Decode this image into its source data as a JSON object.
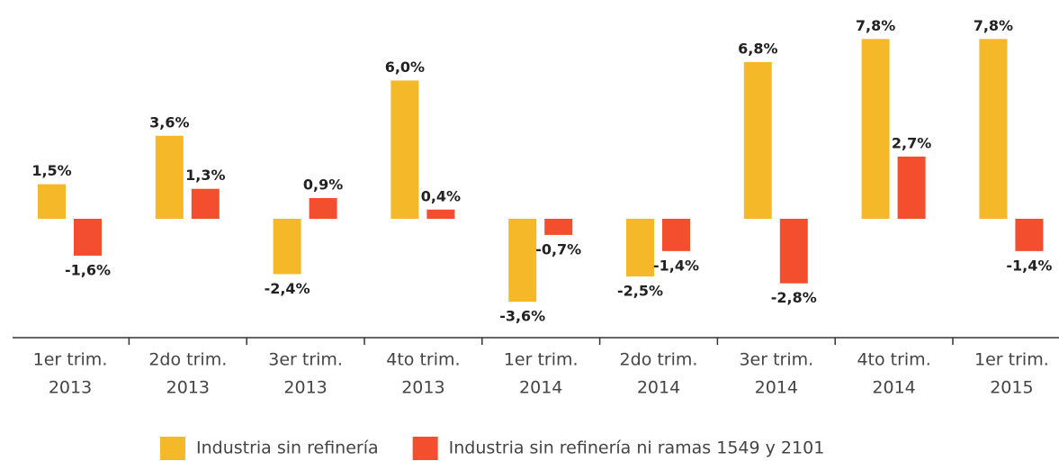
{
  "chart_data": {
    "type": "bar",
    "categories": [
      [
        "1er trim.",
        "2013"
      ],
      [
        "2do trim.",
        "2013"
      ],
      [
        "3er trim.",
        "2013"
      ],
      [
        "4to trim.",
        "2013"
      ],
      [
        "1er trim.",
        "2014"
      ],
      [
        "2do trim.",
        "2014"
      ],
      [
        "3er trim.",
        "2014"
      ],
      [
        "4to trim.",
        "2014"
      ],
      [
        "1er trim.",
        "2015"
      ]
    ],
    "series": [
      {
        "name": "Industria sin refinería",
        "color": "#f5b829",
        "values": [
          1.5,
          3.6,
          -2.4,
          6.0,
          -3.6,
          -2.5,
          6.8,
          7.8,
          7.8
        ],
        "value_labels": [
          "1,5%",
          "3,6%",
          "-2,4%",
          "6,0%",
          "-3,6%",
          "-2,5%",
          "6,8%",
          "7,8%",
          "7,8%"
        ]
      },
      {
        "name": "Industria sin refinería ni ramas 1549 y 2101",
        "color": "#f34e2e",
        "values": [
          -1.6,
          1.3,
          0.9,
          0.4,
          -0.7,
          -1.4,
          -2.8,
          2.7,
          -1.4
        ],
        "value_labels": [
          "-1,6%",
          "1,3%",
          "0,9%",
          "0,4%",
          "-0,7%",
          "-1,4%",
          "-2,8%",
          "2,7%",
          "-1,4%"
        ]
      }
    ],
    "legend": "bottom"
  }
}
